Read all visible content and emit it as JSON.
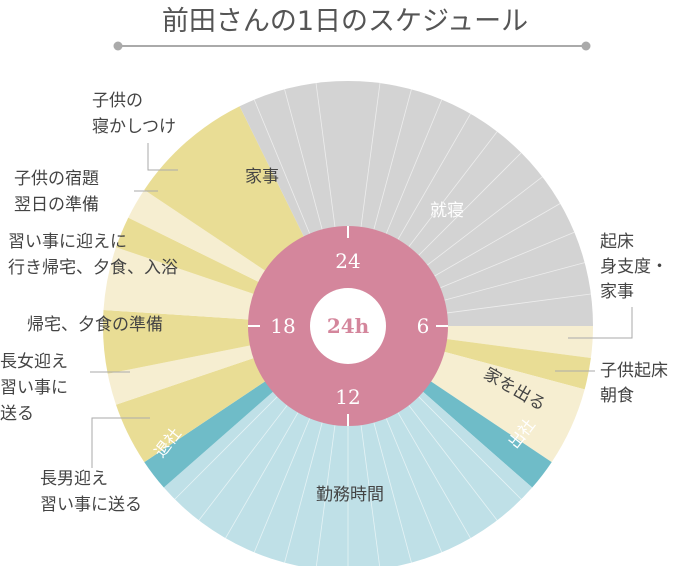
{
  "title": "前田さんの1日のスケジュール",
  "center_label": "24h",
  "hour_marks": [
    "24",
    "6",
    "12",
    "18"
  ],
  "colors": {
    "sleep": "#d3d3d3",
    "yellow": "#e9dd95",
    "cream": "#f6eed1",
    "teal": "#6fbcc8",
    "work": "#bfe0e7",
    "ring": "#d4869c",
    "center": "#ffffff"
  },
  "segments": [
    {
      "start": 0,
      "end": 6,
      "color": "sleep",
      "label": "就寝",
      "label_style": "white"
    },
    {
      "start": 6,
      "end": 6.5,
      "color": "cream",
      "callout": "起床_身支度"
    },
    {
      "start": 6.5,
      "end": 7,
      "color": "yellow",
      "callout": "子供起床"
    },
    {
      "start": 7,
      "end": 8.25,
      "color": "cream",
      "label": "家を出る",
      "label_style": "dark"
    },
    {
      "start": 8.25,
      "end": 8.75,
      "color": "teal",
      "band": "出社"
    },
    {
      "start": 8.75,
      "end": 15.25,
      "color": "work",
      "label": "勤務時間",
      "label_style": "dark"
    },
    {
      "start": 15.25,
      "end": 15.75,
      "color": "teal",
      "band": "退社"
    },
    {
      "start": 15.75,
      "end": 16.75,
      "color": "yellow",
      "callout": "長男迎え"
    },
    {
      "start": 16.75,
      "end": 17.25,
      "color": "cream",
      "callout": "長女迎え"
    },
    {
      "start": 17.25,
      "end": 18.25,
      "color": "yellow",
      "callout": "帰宅"
    },
    {
      "start": 18.25,
      "end": 19.25,
      "color": "cream",
      "callout": "習い事"
    },
    {
      "start": 19.25,
      "end": 19.75,
      "color": "yellow",
      "callout": "宿題"
    },
    {
      "start": 19.75,
      "end": 20.25,
      "color": "cream",
      "callout": "寝かし"
    },
    {
      "start": 20.25,
      "end": 22.25,
      "color": "yellow",
      "label": "家事",
      "label_style": "dark"
    },
    {
      "start": 22.25,
      "end": 24,
      "color": "sleep"
    }
  ],
  "labels": {
    "sleep": "就寝",
    "work": "勤務時間",
    "housework": "家事",
    "leave_home": "家を出る",
    "go_office": "出社",
    "leave_office": "退社",
    "wakeup": [
      "起床",
      "身支度・",
      "家事"
    ],
    "kids_wakeup": [
      "子供起床",
      "朝食"
    ],
    "son_pickup": [
      "長男迎え",
      "習い事に送る"
    ],
    "daughter_pickup": [
      "長女迎え",
      "習い事に",
      "送る"
    ],
    "home_dinner_prep": [
      "帰宅、夕食の準備"
    ],
    "lessons_pickup": [
      "習い事に迎えに",
      "行き帰宅、夕食、入浴"
    ],
    "homework": [
      "子供の宿題",
      "翌日の準備"
    ],
    "bedtime": [
      "子供の",
      "寝かしつけ"
    ]
  }
}
